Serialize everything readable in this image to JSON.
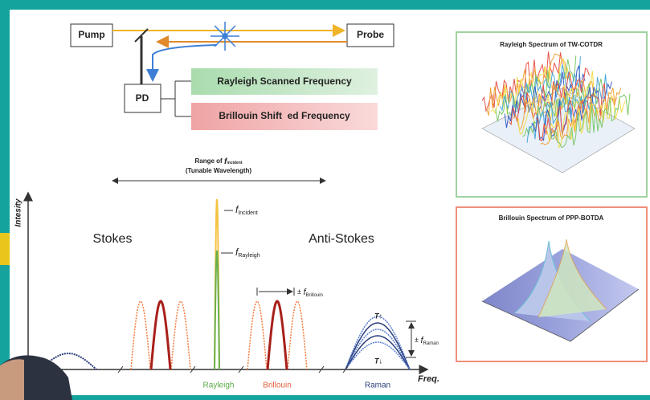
{
  "setup": {
    "pump": "Pump",
    "probe": "Probe",
    "pd": "PD",
    "rayleigh_box": "Rayleigh Scanned Frequency",
    "brillouin_box": "Brillouin Shift  ed Frequency"
  },
  "spectrum": {
    "range_label": {
      "prefix": "Range of",
      "symbol": "f",
      "subscript": "incident",
      "note": "(Tunable Wavelength)"
    },
    "y_axis": "Intesity",
    "x_axis": "Freq.",
    "stokes": "Stokes",
    "anti_stokes": "Anti-Stokes",
    "incident": {
      "symbol": "f",
      "subscript": "Incident"
    },
    "rayleigh_mark": {
      "symbol": "f",
      "subscript": "Rayleigh"
    },
    "brillouin_shift": {
      "prefix": "±",
      "symbol": "f",
      "subscript": "Brillouin"
    },
    "raman_shift": {
      "prefix": "±",
      "symbol": "f",
      "subscript": "Raman"
    },
    "temp_up": "T↑",
    "temp_down": "T↓",
    "bands": [
      "Rayleigh",
      "Brillouin",
      "Raman"
    ]
  },
  "panels": [
    {
      "title": "Rayleigh Spectrum of TW-COTDR"
    },
    {
      "title": "Brillouin Spectrum of PPP-BOTDA"
    }
  ]
}
